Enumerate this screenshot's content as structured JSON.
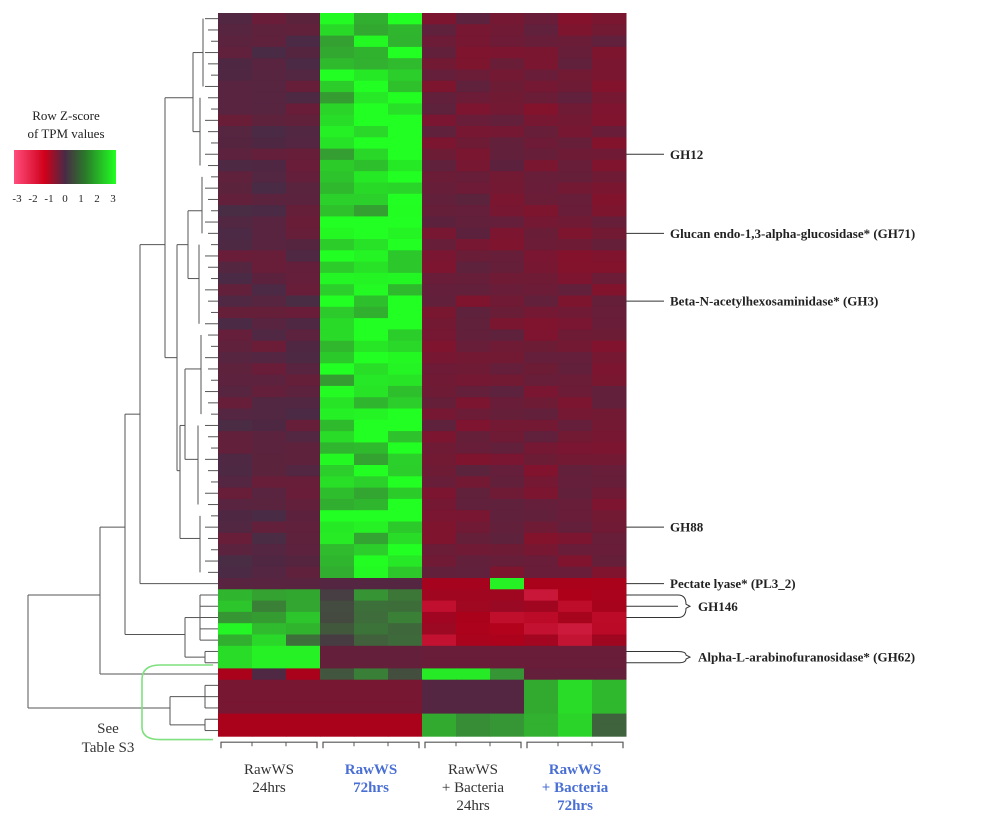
{
  "chart_data": {
    "type": "heatmap",
    "title": "",
    "legend": {
      "title_lines": [
        "Row Z-score",
        "of TPM values"
      ],
      "ticks": [
        "-3",
        "-2",
        "-1",
        "0",
        "1",
        "2",
        "3"
      ],
      "range": [
        -3,
        3
      ],
      "colors": {
        "low": "#ff4d7d",
        "mid_low": "#b0001a",
        "zero": "#4a2a45",
        "high": "#22ff22"
      },
      "placement": "top-left"
    },
    "columns": [
      {
        "lines": [
          "RawWS",
          "24hrs"
        ],
        "highlight": false
      },
      {
        "lines": [
          "RawWS",
          "72hrs"
        ],
        "highlight": true
      },
      {
        "lines": [
          "RawWS",
          "+ Bacteria",
          "24hrs"
        ],
        "highlight": false
      },
      {
        "lines": [
          "RawWS",
          "+ Bacteria",
          "72hrs"
        ],
        "highlight": true
      }
    ],
    "replicates_per_column": 3,
    "highlight_color": "#4a6fd4",
    "row_annotations": [
      {
        "label": "GH12",
        "row": 12
      },
      {
        "label": "Glucan endo-1,3-alpha-glucosidase* (GH71)",
        "row": 19
      },
      {
        "label": "Beta-N-acetylhexosaminidase* (GH3)",
        "row": 25
      },
      {
        "label": "GH88",
        "row": 45
      },
      {
        "label": "Pectate lyase* (PL3_2)",
        "row": 50
      },
      {
        "label": "GH146",
        "row_list": [
          51,
          52,
          53
        ]
      },
      {
        "label": "Alpha-L-arabinofuranosidase* (GH62)",
        "row_list": [
          56,
          57
        ]
      }
    ],
    "side_note": [
      "See",
      "Table S3"
    ],
    "blocks": [
      {
        "rows": [
          0,
          49
        ],
        "values": [
          [
            -0.3,
            -0.3,
            -0.3
          ],
          [
            2.4,
            2.4,
            2.7
          ],
          [
            -0.7,
            -0.7,
            -0.7
          ],
          [
            -0.8,
            -0.8,
            -0.8
          ]
        ]
      },
      {
        "rows": [
          50,
          50
        ],
        "values": [
          [
            -0.3,
            -0.3,
            -0.3
          ],
          [
            -0.2,
            -0.2,
            -0.2
          ],
          [
            -1.8,
            -1.8,
            2.8
          ],
          [
            -1.9,
            -1.9,
            -1.9
          ]
        ]
      },
      {
        "rows": [
          51,
          55
        ],
        "values": [
          [
            2.2,
            1.8,
            1.6
          ],
          [
            0.6,
            1.1,
            0.9
          ],
          [
            -1.9,
            -1.9,
            -1.9
          ],
          [
            -2.0,
            -2.0,
            -2.0
          ]
        ]
      },
      {
        "rows": [
          56,
          57
        ],
        "values": [
          [
            2.5,
            2.8,
            2.8
          ],
          [
            -0.5,
            -0.5,
            -0.5
          ],
          [
            -0.6,
            -0.6,
            -0.6
          ],
          [
            -0.6,
            -0.6,
            -0.6
          ]
        ]
      },
      {
        "rows": [
          58,
          58
        ],
        "values": [
          [
            -1.9,
            -0.1,
            -1.9
          ],
          [
            0.6,
            1.2,
            0.5
          ],
          [
            2.7,
            2.7,
            1.5
          ],
          [
            -0.5,
            -0.5,
            -0.5
          ]
        ]
      },
      {
        "rows": [
          59,
          61
        ],
        "values": [
          [
            -0.9,
            -0.9,
            -0.9
          ],
          [
            -0.9,
            -0.9,
            -0.9
          ],
          [
            -0.2,
            -0.2,
            -0.2
          ],
          [
            1.8,
            2.5,
            2.0
          ]
        ]
      },
      {
        "rows": [
          62,
          63
        ],
        "values": [
          [
            -1.9,
            -1.9,
            -1.9
          ],
          [
            -1.9,
            -1.9,
            -1.9
          ],
          [
            1.8,
            1.4,
            1.5
          ],
          [
            1.9,
            2.4,
            0.8
          ]
        ]
      }
    ]
  }
}
